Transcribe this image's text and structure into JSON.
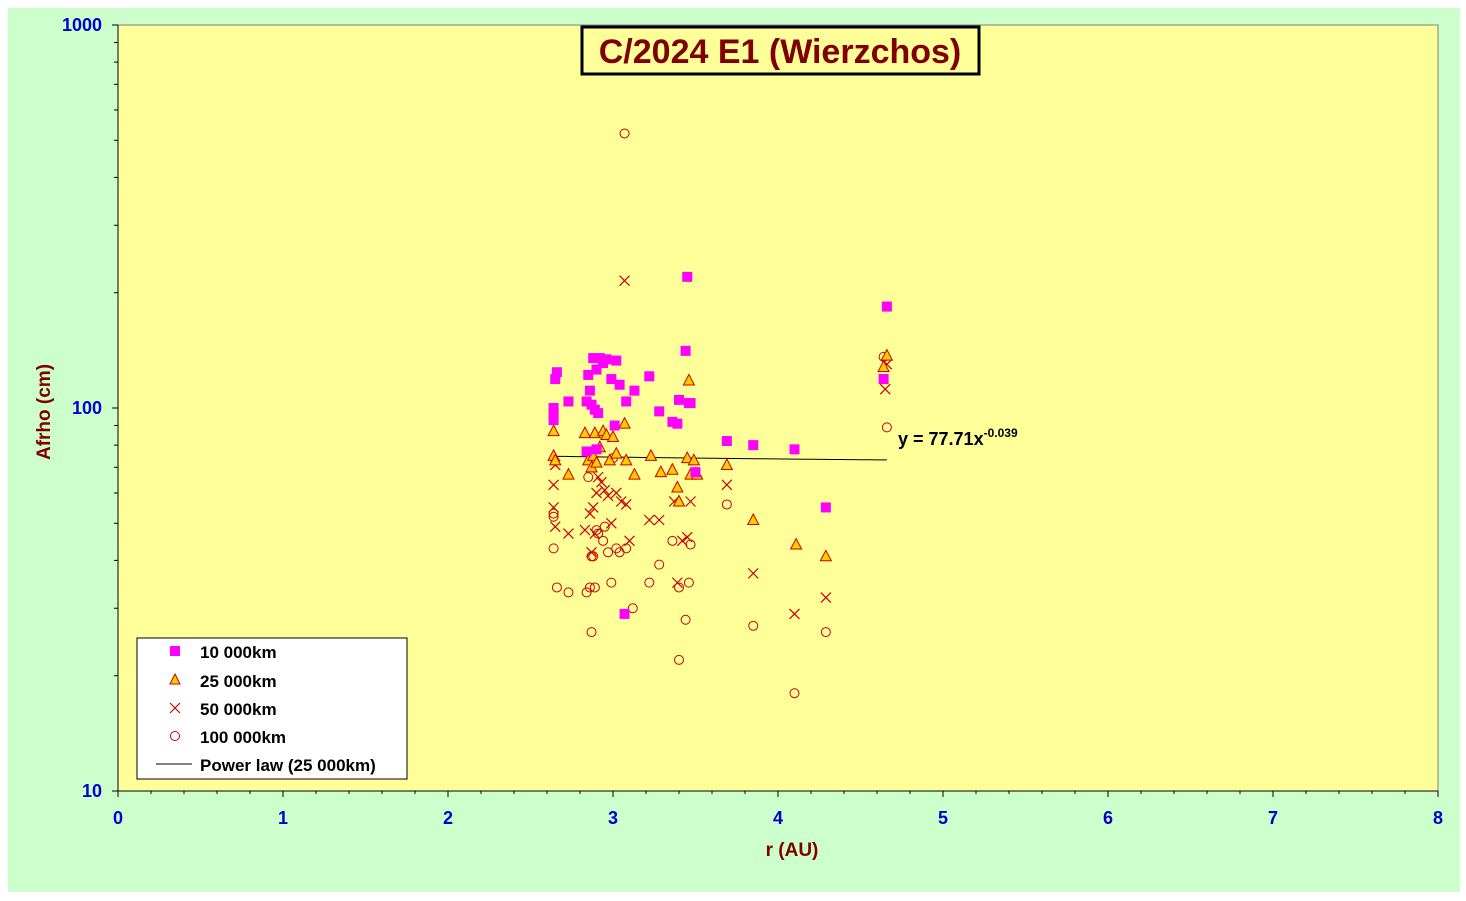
{
  "colors": {
    "page_background": "#ccffcc",
    "plot_background": "#ffff99",
    "axis_text": "#0000cc",
    "title_text": "#800000",
    "series_10000": "#ff00ff",
    "series_25000_fill": "#ffcc00",
    "series_red": "#cc0000"
  },
  "chart_data": {
    "type": "scatter",
    "title": "C/2024 E1 (Wierzchos)",
    "xlabel": "r (AU)",
    "ylabel": "Afrho (cm)",
    "xlim": [
      0,
      8
    ],
    "ylim": [
      10,
      1000
    ],
    "y_scale": "log",
    "x_ticks": [
      "0",
      "1",
      "2",
      "3",
      "4",
      "5",
      "6",
      "7",
      "8"
    ],
    "y_ticks": [
      "10",
      "100",
      "1000"
    ],
    "legend_position": "bottom-left",
    "grid": false,
    "series": [
      {
        "name": "10 000km",
        "marker": "filled-square",
        "points": [
          [
            2.65,
            119
          ],
          [
            2.66,
            124
          ],
          [
            2.64,
            100
          ],
          [
            2.64,
            97
          ],
          [
            2.64,
            93
          ],
          [
            2.73,
            104
          ],
          [
            2.84,
            104
          ],
          [
            2.85,
            122
          ],
          [
            2.86,
            111
          ],
          [
            2.87,
            102
          ],
          [
            2.88,
            135
          ],
          [
            2.89,
            99
          ],
          [
            2.9,
            126
          ],
          [
            2.91,
            97
          ],
          [
            2.92,
            135
          ],
          [
            2.94,
            131
          ],
          [
            2.96,
            134
          ],
          [
            2.99,
            119
          ],
          [
            3.02,
            133
          ],
          [
            3.04,
            115
          ],
          [
            3.07,
            29
          ],
          [
            3.08,
            104
          ],
          [
            3.13,
            111
          ],
          [
            3.22,
            121
          ],
          [
            3.28,
            98
          ],
          [
            3.36,
            92
          ],
          [
            3.39,
            91
          ],
          [
            3.4,
            105
          ],
          [
            3.44,
            141
          ],
          [
            3.45,
            220
          ],
          [
            3.46,
            103
          ],
          [
            3.47,
            103
          ],
          [
            3.5,
            68
          ],
          [
            3.69,
            82
          ],
          [
            3.85,
            80
          ],
          [
            4.1,
            78
          ],
          [
            4.29,
            55
          ],
          [
            4.64,
            119
          ],
          [
            4.66,
            184
          ],
          [
            2.84,
            77
          ],
          [
            3.01,
            90
          ],
          [
            2.9,
            78
          ]
        ]
      },
      {
        "name": "25 000km",
        "marker": "hollow-triangle",
        "points": [
          [
            2.64,
            87
          ],
          [
            2.64,
            75
          ],
          [
            2.65,
            73
          ],
          [
            2.73,
            67
          ],
          [
            2.83,
            86
          ],
          [
            2.85,
            73
          ],
          [
            2.87,
            70
          ],
          [
            2.88,
            75
          ],
          [
            2.89,
            86
          ],
          [
            2.9,
            72
          ],
          [
            2.92,
            79
          ],
          [
            2.94,
            87
          ],
          [
            2.96,
            85
          ],
          [
            2.98,
            73
          ],
          [
            3.0,
            84
          ],
          [
            3.02,
            76
          ],
          [
            3.07,
            91
          ],
          [
            3.08,
            73
          ],
          [
            3.13,
            67
          ],
          [
            3.23,
            75
          ],
          [
            3.29,
            68
          ],
          [
            3.36,
            69
          ],
          [
            3.39,
            62
          ],
          [
            3.4,
            57
          ],
          [
            3.45,
            74
          ],
          [
            3.46,
            118
          ],
          [
            3.47,
            67
          ],
          [
            3.49,
            73
          ],
          [
            3.51,
            67
          ],
          [
            3.69,
            71
          ],
          [
            3.85,
            51
          ],
          [
            4.11,
            44
          ],
          [
            4.29,
            41
          ],
          [
            4.64,
            128
          ],
          [
            4.66,
            137
          ]
        ]
      },
      {
        "name": "50 000km",
        "marker": "x",
        "points": [
          [
            2.64,
            63
          ],
          [
            2.64,
            55
          ],
          [
            2.65,
            49
          ],
          [
            2.65,
            71
          ],
          [
            2.73,
            47
          ],
          [
            2.83,
            48
          ],
          [
            2.86,
            53
          ],
          [
            2.87,
            42
          ],
          [
            2.88,
            55
          ],
          [
            2.89,
            47
          ],
          [
            2.9,
            60
          ],
          [
            2.91,
            66
          ],
          [
            2.93,
            64
          ],
          [
            2.95,
            61
          ],
          [
            2.97,
            59
          ],
          [
            2.99,
            50
          ],
          [
            3.02,
            60
          ],
          [
            3.05,
            57
          ],
          [
            3.08,
            56
          ],
          [
            3.1,
            45
          ],
          [
            3.22,
            51
          ],
          [
            3.28,
            51
          ],
          [
            3.37,
            57
          ],
          [
            3.39,
            35
          ],
          [
            3.42,
            45
          ],
          [
            3.45,
            46
          ],
          [
            3.47,
            57
          ],
          [
            3.69,
            63
          ],
          [
            3.85,
            37
          ],
          [
            4.1,
            29
          ],
          [
            4.29,
            32
          ],
          [
            4.65,
            112
          ],
          [
            4.66,
            130
          ],
          [
            3.07,
            215
          ]
        ]
      },
      {
        "name": "100 000km",
        "marker": "hollow-circle",
        "points": [
          [
            2.64,
            53
          ],
          [
            2.64,
            52
          ],
          [
            2.64,
            43
          ],
          [
            2.66,
            34
          ],
          [
            2.73,
            33
          ],
          [
            2.84,
            33
          ],
          [
            2.85,
            66
          ],
          [
            2.86,
            34
          ],
          [
            2.87,
            26
          ],
          [
            2.87,
            41
          ],
          [
            2.88,
            41
          ],
          [
            2.89,
            34
          ],
          [
            2.9,
            48
          ],
          [
            2.91,
            47
          ],
          [
            2.94,
            45
          ],
          [
            2.95,
            49
          ],
          [
            2.97,
            42
          ],
          [
            2.99,
            35
          ],
          [
            3.0,
            74
          ],
          [
            3.02,
            43
          ],
          [
            3.04,
            42
          ],
          [
            3.07,
            521
          ],
          [
            3.08,
            43
          ],
          [
            3.12,
            30
          ],
          [
            3.22,
            35
          ],
          [
            3.28,
            39
          ],
          [
            3.36,
            45
          ],
          [
            3.4,
            34
          ],
          [
            3.4,
            22
          ],
          [
            3.44,
            28
          ],
          [
            3.46,
            35
          ],
          [
            3.47,
            44
          ],
          [
            3.5,
            68
          ],
          [
            3.69,
            56
          ],
          [
            3.85,
            27
          ],
          [
            4.1,
            18
          ],
          [
            4.29,
            26
          ],
          [
            4.64,
            136
          ],
          [
            4.66,
            89
          ]
        ]
      }
    ],
    "fit": {
      "name": "Power law (25 000km)",
      "coefficient": 77.71,
      "exponent": -0.039,
      "x_range": [
        2.64,
        4.66
      ],
      "equation_base": "y = 77.71x",
      "equation_exponent": "-0.039"
    }
  }
}
